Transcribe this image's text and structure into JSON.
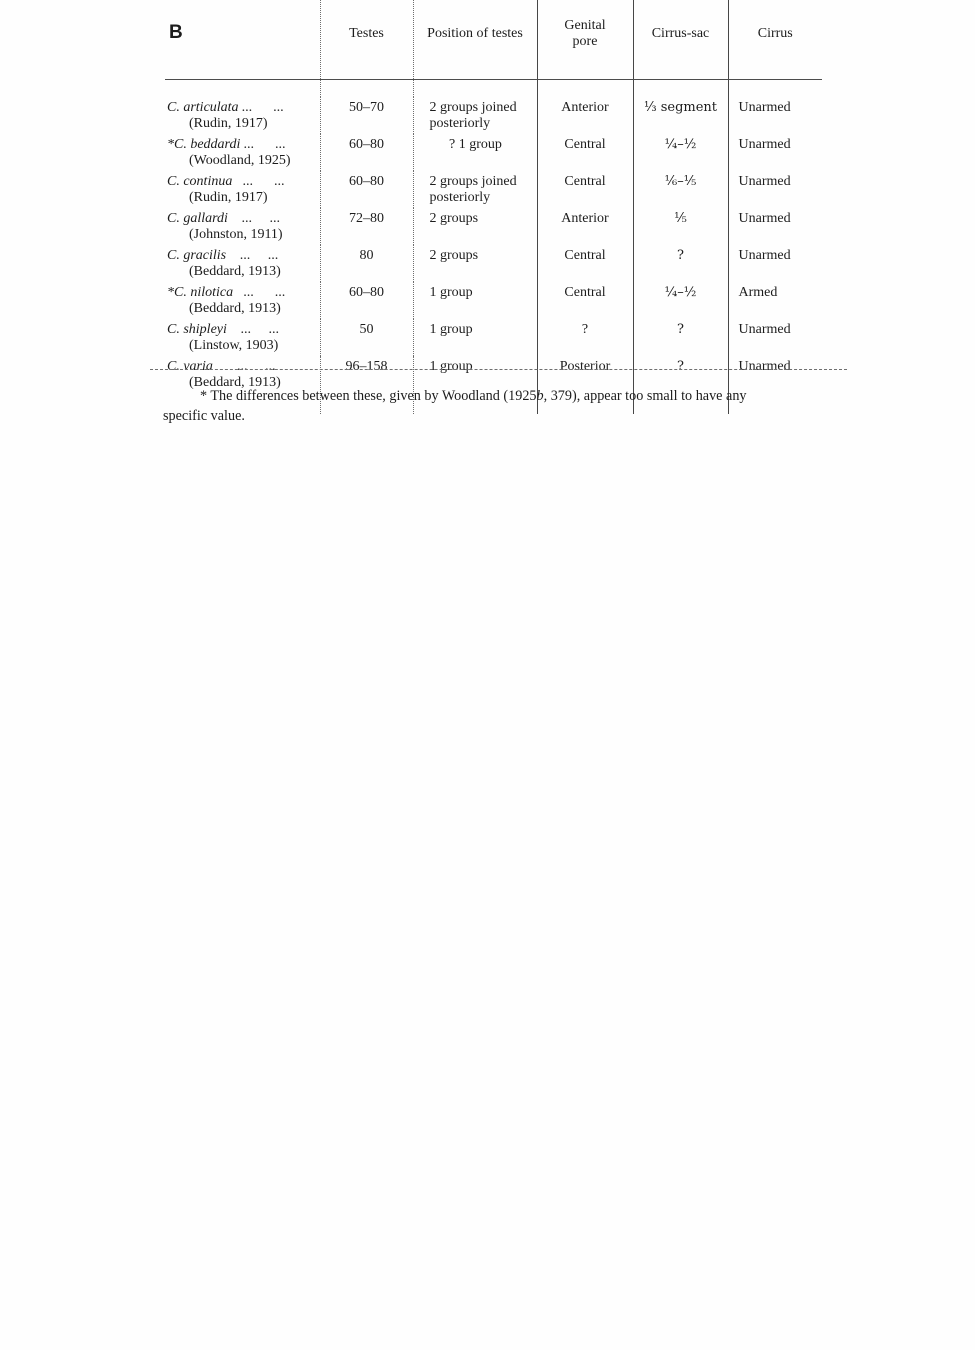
{
  "page": {
    "signature": "B"
  },
  "table": {
    "headers": {
      "testes": "Testes",
      "position": "Position of testes",
      "genital_line1": "Genital",
      "genital_line2": "pore",
      "cirrus_sac": "Cirrus-sac",
      "cirrus": "Cirrus"
    },
    "rows": [
      {
        "name": "C. articulata ...      ...",
        "citation": "(Rudin, 1917)",
        "testes": "50–70",
        "position_line1": "2 groups joined",
        "position_line2": "posteriorly",
        "genital_pore": "Anterior",
        "cirrus_sac": "⅓ segment",
        "cirrus": "Unarmed"
      },
      {
        "name": "*C. beddardi ...      ...",
        "citation": "(Woodland, 1925)",
        "testes": "60–80",
        "position_line1": "? 1 group",
        "position_line2": "",
        "genital_pore": "Central",
        "cirrus_sac": "¼–½",
        "cirrus": "Unarmed"
      },
      {
        "name": "C. continua   ...      ...",
        "citation": "(Rudin, 1917)",
        "testes": "60–80",
        "position_line1": "2 groups joined",
        "position_line2": "posteriorly",
        "genital_pore": "Central",
        "cirrus_sac": "⅙–⅕",
        "cirrus": "Unarmed"
      },
      {
        "name": "C. gallardi    ...     ...",
        "citation": "(Johnston, 1911)",
        "testes": "72–80",
        "position_line1": "2 groups",
        "position_line2": "",
        "genital_pore": "Anterior",
        "cirrus_sac": "⅕",
        "cirrus": "Unarmed"
      },
      {
        "name": "C. gracilis    ...     ...",
        "citation": "(Beddard, 1913)",
        "testes": "80",
        "position_line1": "2 groups",
        "position_line2": "",
        "genital_pore": "Central",
        "cirrus_sac": "?",
        "cirrus": "Unarmed"
      },
      {
        "name": "*C. nilotica   ...      ...",
        "citation": "(Beddard, 1913)",
        "testes": "60–80",
        "position_line1": "1 group",
        "position_line2": "",
        "genital_pore": "Central",
        "cirrus_sac": "¼–½",
        "cirrus": "Armed"
      },
      {
        "name": "C. shipleyi    ...     ...",
        "citation": "(Linstow, 1903)",
        "testes": "50",
        "position_line1": "1 group",
        "position_line2": "",
        "genital_pore": "?",
        "cirrus_sac": "?",
        "cirrus": "Unarmed"
      },
      {
        "name": "C. varia       ...     ...",
        "citation": "(Beddard, 1913)",
        "testes": "96–158",
        "position_line1": "1 group",
        "position_line2": "",
        "genital_pore": "Posterior",
        "cirrus_sac": "?",
        "cirrus": "Unarmed"
      }
    ]
  },
  "footnote": {
    "line1_pre": "* The differences between these, given by Woodland (1925",
    "line1_italic": "b",
    "line1_post": ", 379), appear too small to have any",
    "line2": "specific value."
  }
}
